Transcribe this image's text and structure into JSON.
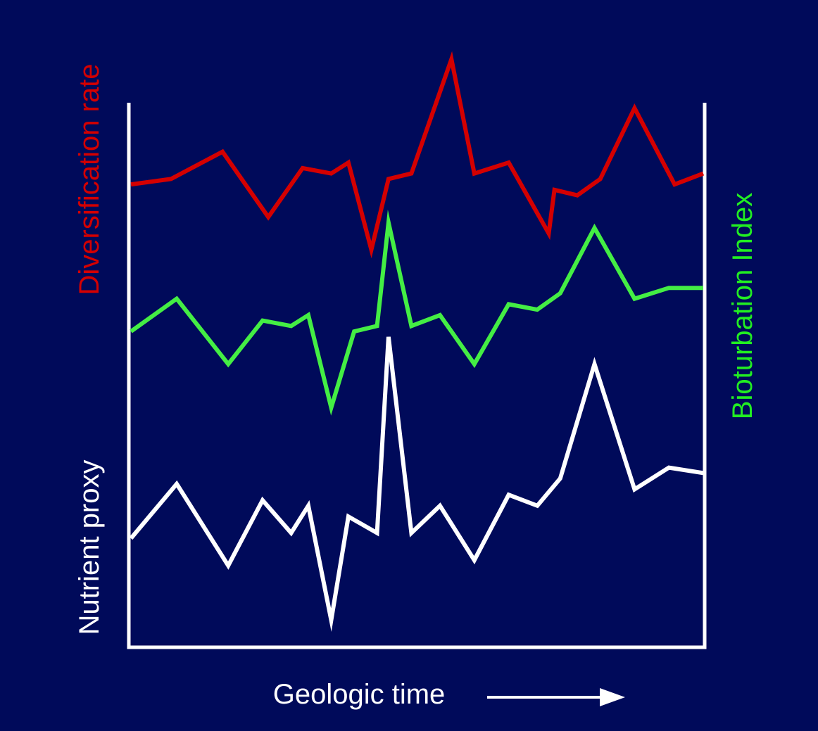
{
  "background": "#000a5a",
  "chart_data": {
    "type": "line",
    "xlabel": "Geologic time",
    "xlabel_arrow": "right-arrow-icon",
    "grid": false,
    "x_ticks": false,
    "y_ticks": false,
    "ylabel_left_top": {
      "text": "Diversification rate",
      "color": "#d40000"
    },
    "ylabel_left_bottom": {
      "text": "Nutrient proxy",
      "color": "#ffffff"
    },
    "ylabel_right": {
      "text": "Bioturbation Index",
      "color": "#22ee22"
    },
    "xlim": [
      0,
      100
    ],
    "ylim": [
      0,
      100
    ],
    "series": [
      {
        "key": "diversification",
        "color": "#d40000",
        "x": [
          0,
          7,
          16,
          24,
          30,
          35,
          38,
          42,
          45,
          49,
          56,
          60,
          66,
          73,
          74,
          78,
          82,
          88,
          95,
          100
        ],
        "y": [
          85,
          86,
          91,
          79,
          88,
          87,
          89,
          73,
          86,
          87,
          108,
          87,
          89,
          76,
          84,
          83,
          86,
          99,
          85,
          87
        ]
      },
      {
        "key": "bioturbation",
        "color": "#44ee44",
        "x": [
          0,
          8,
          17,
          23,
          28,
          31,
          35,
          39,
          43,
          45,
          49,
          54,
          60,
          66,
          71,
          75,
          81,
          88,
          94,
          100
        ],
        "y": [
          58,
          64,
          52,
          60,
          59,
          61,
          44,
          58,
          59,
          78,
          59,
          61,
          52,
          63,
          62,
          65,
          77,
          64,
          66,
          66
        ]
      },
      {
        "key": "nutrient",
        "color": "#ffffff",
        "x": [
          0,
          8,
          17,
          23,
          28,
          31,
          35,
          38,
          43,
          45,
          49,
          54,
          60,
          66,
          71,
          75,
          81,
          88,
          94,
          100
        ],
        "y": [
          20,
          30,
          15,
          27,
          21,
          26,
          5,
          24,
          21,
          57,
          21,
          26,
          16,
          28,
          26,
          31,
          52,
          29,
          33,
          32
        ]
      }
    ]
  }
}
